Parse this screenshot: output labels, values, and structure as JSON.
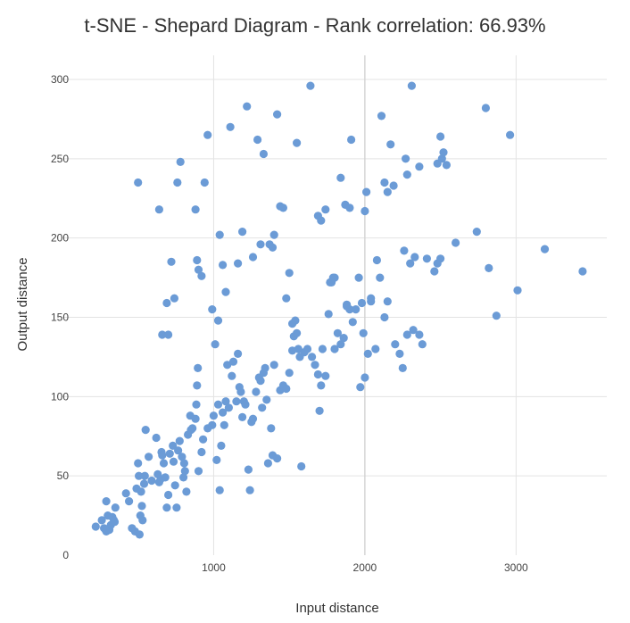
{
  "chart_data": {
    "type": "scatter",
    "title": "t-SNE - Shepard Diagram - Rank correlation: 66.93%",
    "xlabel": "Input distance",
    "ylabel": "Output distance",
    "xlim": [
      0,
      3600
    ],
    "ylim": [
      0,
      310
    ],
    "xticks": [
      1000,
      2000,
      3000
    ],
    "yticks": [
      0,
      50,
      100,
      150,
      200,
      250,
      300
    ],
    "grid": true,
    "legend": "none",
    "point_color": "#6b9bd6",
    "series": [
      {
        "points": [
          [
            220,
            18
          ],
          [
            260,
            22
          ],
          [
            275,
            17
          ],
          [
            285,
            16
          ],
          [
            290,
            34
          ],
          [
            300,
            25
          ],
          [
            310,
            16
          ],
          [
            320,
            19
          ],
          [
            330,
            24
          ],
          [
            340,
            22
          ],
          [
            345,
            21
          ],
          [
            350,
            30
          ],
          [
            290,
            15
          ],
          [
            420,
            39
          ],
          [
            440,
            34
          ],
          [
            460,
            17
          ],
          [
            480,
            15
          ],
          [
            490,
            42
          ],
          [
            500,
            58
          ],
          [
            505,
            50
          ],
          [
            510,
            13
          ],
          [
            515,
            25
          ],
          [
            520,
            40
          ],
          [
            525,
            31
          ],
          [
            530,
            22
          ],
          [
            540,
            45
          ],
          [
            545,
            50
          ],
          [
            550,
            79
          ],
          [
            570,
            62
          ],
          [
            590,
            47
          ],
          [
            620,
            74
          ],
          [
            630,
            51
          ],
          [
            640,
            46
          ],
          [
            650,
            48
          ],
          [
            655,
            65
          ],
          [
            660,
            63
          ],
          [
            670,
            58
          ],
          [
            680,
            49
          ],
          [
            690,
            30
          ],
          [
            700,
            38
          ],
          [
            710,
            64
          ],
          [
            730,
            69
          ],
          [
            735,
            59
          ],
          [
            745,
            44
          ],
          [
            755,
            30
          ],
          [
            765,
            66
          ],
          [
            775,
            72
          ],
          [
            790,
            62
          ],
          [
            800,
            49
          ],
          [
            805,
            58
          ],
          [
            810,
            53
          ],
          [
            820,
            40
          ],
          [
            830,
            76
          ],
          [
            845,
            88
          ],
          [
            850,
            79
          ],
          [
            860,
            80
          ],
          [
            880,
            86
          ],
          [
            885,
            95
          ],
          [
            890,
            107
          ],
          [
            895,
            118
          ],
          [
            900,
            53
          ],
          [
            920,
            65
          ],
          [
            930,
            73
          ],
          [
            960,
            80
          ],
          [
            990,
            82
          ],
          [
            1000,
            88
          ],
          [
            1020,
            60
          ],
          [
            1030,
            95
          ],
          [
            1040,
            41
          ],
          [
            1050,
            69
          ],
          [
            1060,
            90
          ],
          [
            1070,
            82
          ],
          [
            1080,
            97
          ],
          [
            1090,
            120
          ],
          [
            1100,
            93
          ],
          [
            1120,
            113
          ],
          [
            1130,
            122
          ],
          [
            1150,
            97
          ],
          [
            1160,
            127
          ],
          [
            1170,
            106
          ],
          [
            1180,
            103
          ],
          [
            1190,
            87
          ],
          [
            1200,
            97
          ],
          [
            1210,
            95
          ],
          [
            1230,
            54
          ],
          [
            1240,
            41
          ],
          [
            1250,
            84
          ],
          [
            1260,
            86
          ],
          [
            1280,
            103
          ],
          [
            1300,
            112
          ],
          [
            1310,
            110
          ],
          [
            1320,
            93
          ],
          [
            1330,
            115
          ],
          [
            1340,
            118
          ],
          [
            1350,
            98
          ],
          [
            1360,
            58
          ],
          [
            1380,
            80
          ],
          [
            1390,
            63
          ],
          [
            1400,
            120
          ],
          [
            1420,
            61
          ],
          [
            1440,
            104
          ],
          [
            1460,
            107
          ],
          [
            1480,
            105
          ],
          [
            1500,
            115
          ],
          [
            1520,
            129
          ],
          [
            1530,
            138
          ],
          [
            1540,
            148
          ],
          [
            1550,
            140
          ],
          [
            1560,
            130
          ],
          [
            1570,
            125
          ],
          [
            1580,
            56
          ],
          [
            1600,
            128
          ],
          [
            1620,
            130
          ],
          [
            1650,
            125
          ],
          [
            1670,
            120
          ],
          [
            1690,
            114
          ],
          [
            1700,
            91
          ],
          [
            1710,
            107
          ],
          [
            1720,
            130
          ],
          [
            1740,
            113
          ],
          [
            1760,
            152
          ],
          [
            1780,
            172
          ],
          [
            1790,
            175
          ],
          [
            1800,
            130
          ],
          [
            1820,
            140
          ],
          [
            1840,
            133
          ],
          [
            1860,
            137
          ],
          [
            1880,
            157
          ],
          [
            1900,
            155
          ],
          [
            1920,
            147
          ],
          [
            1940,
            155
          ],
          [
            1970,
            106
          ],
          [
            1980,
            159
          ],
          [
            1990,
            140
          ],
          [
            2000,
            112
          ],
          [
            2020,
            127
          ],
          [
            2040,
            160
          ],
          [
            2070,
            130
          ],
          [
            2100,
            175
          ],
          [
            2130,
            150
          ],
          [
            2150,
            160
          ],
          [
            2200,
            133
          ],
          [
            2230,
            127
          ],
          [
            2250,
            118
          ],
          [
            2280,
            139
          ],
          [
            2320,
            142
          ],
          [
            2360,
            139
          ],
          [
            2380,
            133
          ],
          [
            2410,
            187
          ],
          [
            2460,
            179
          ],
          [
            2480,
            184
          ],
          [
            2500,
            187
          ],
          [
            500,
            235
          ],
          [
            640,
            218
          ],
          [
            660,
            139
          ],
          [
            690,
            159
          ],
          [
            700,
            139
          ],
          [
            720,
            185
          ],
          [
            740,
            162
          ],
          [
            760,
            235
          ],
          [
            780,
            248
          ],
          [
            880,
            218
          ],
          [
            890,
            186
          ],
          [
            900,
            180
          ],
          [
            920,
            176
          ],
          [
            940,
            235
          ],
          [
            960,
            265
          ],
          [
            990,
            155
          ],
          [
            1010,
            133
          ],
          [
            1030,
            148
          ],
          [
            1040,
            202
          ],
          [
            1060,
            183
          ],
          [
            1080,
            166
          ],
          [
            1110,
            270
          ],
          [
            1160,
            184
          ],
          [
            1190,
            204
          ],
          [
            1220,
            283
          ],
          [
            1260,
            188
          ],
          [
            1290,
            262
          ],
          [
            1310,
            196
          ],
          [
            1330,
            253
          ],
          [
            1370,
            196
          ],
          [
            1390,
            194
          ],
          [
            1400,
            202
          ],
          [
            1420,
            278
          ],
          [
            1440,
            220
          ],
          [
            1460,
            219
          ],
          [
            1480,
            162
          ],
          [
            1500,
            178
          ],
          [
            1520,
            146
          ],
          [
            1550,
            260
          ],
          [
            1640,
            296
          ],
          [
            1690,
            214
          ],
          [
            1710,
            211
          ],
          [
            1740,
            218
          ],
          [
            1770,
            172
          ],
          [
            1800,
            175
          ],
          [
            1840,
            238
          ],
          [
            1870,
            221
          ],
          [
            1880,
            158
          ],
          [
            1900,
            219
          ],
          [
            1910,
            262
          ],
          [
            1960,
            175
          ],
          [
            2000,
            217
          ],
          [
            2010,
            229
          ],
          [
            2040,
            162
          ],
          [
            2080,
            186
          ],
          [
            2110,
            277
          ],
          [
            2130,
            235
          ],
          [
            2150,
            229
          ],
          [
            2170,
            259
          ],
          [
            2190,
            233
          ],
          [
            2260,
            192
          ],
          [
            2270,
            250
          ],
          [
            2280,
            240
          ],
          [
            2300,
            184
          ],
          [
            2310,
            296
          ],
          [
            2330,
            188
          ],
          [
            2360,
            245
          ],
          [
            2480,
            247
          ],
          [
            2500,
            264
          ],
          [
            2510,
            250
          ],
          [
            2520,
            254
          ],
          [
            2540,
            246
          ],
          [
            2600,
            197
          ],
          [
            2740,
            204
          ],
          [
            2800,
            282
          ],
          [
            2820,
            181
          ],
          [
            2870,
            151
          ],
          [
            2960,
            265
          ],
          [
            3010,
            167
          ],
          [
            3190,
            193
          ],
          [
            3440,
            179
          ]
        ]
      }
    ]
  }
}
